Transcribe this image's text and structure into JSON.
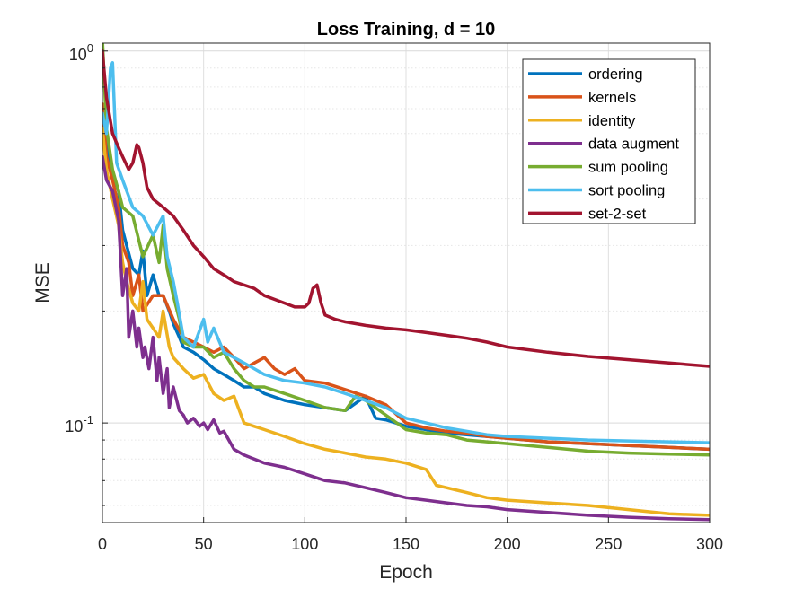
{
  "chart_data": {
    "type": "line",
    "title": "Loss Training, d = 10",
    "xlabel": "Epoch",
    "ylabel": "MSE",
    "xlim": [
      0,
      300
    ],
    "ylim": [
      0.054,
      1.05
    ],
    "yscale": "log",
    "grid": true,
    "legend_position": "top-right",
    "x_ticks": [
      0,
      50,
      100,
      150,
      200,
      250,
      300
    ],
    "x_tick_labels": [
      "0",
      "50",
      "100",
      "150",
      "200",
      "250",
      "300"
    ],
    "y_ticks": [
      {
        "base": "10",
        "exp": "-1",
        "value": 0.1
      },
      {
        "base": "10",
        "exp": "0",
        "value": 1
      }
    ],
    "series": [
      {
        "name": "ordering",
        "color": "#0072BD",
        "x": [
          0,
          2,
          5,
          8,
          10,
          12,
          15,
          18,
          20,
          22,
          25,
          28,
          30,
          33,
          35,
          38,
          40,
          45,
          50,
          55,
          60,
          65,
          70,
          75,
          80,
          90,
          100,
          110,
          120,
          130,
          135,
          140,
          145,
          150,
          160,
          170,
          180,
          190,
          200,
          220,
          240,
          260,
          280,
          300
        ],
        "y": [
          0.7,
          0.55,
          0.47,
          0.42,
          0.33,
          0.3,
          0.26,
          0.25,
          0.29,
          0.22,
          0.25,
          0.22,
          0.22,
          0.2,
          0.185,
          0.17,
          0.16,
          0.155,
          0.148,
          0.14,
          0.135,
          0.13,
          0.125,
          0.125,
          0.12,
          0.115,
          0.112,
          0.11,
          0.108,
          0.118,
          0.103,
          0.102,
          0.1,
          0.098,
          0.096,
          0.094,
          0.093,
          0.092,
          0.091,
          0.089,
          0.088,
          0.087,
          0.086,
          0.085
        ]
      },
      {
        "name": "kernels",
        "color": "#D95319",
        "x": [
          0,
          2,
          5,
          8,
          10,
          13,
          15,
          18,
          20,
          25,
          30,
          35,
          40,
          45,
          50,
          55,
          60,
          65,
          70,
          75,
          80,
          85,
          90,
          95,
          100,
          110,
          120,
          130,
          140,
          150,
          160,
          170,
          180,
          190,
          200,
          220,
          240,
          260,
          280,
          300
        ],
        "y": [
          0.72,
          0.52,
          0.45,
          0.38,
          0.3,
          0.27,
          0.22,
          0.25,
          0.2,
          0.22,
          0.22,
          0.19,
          0.17,
          0.165,
          0.16,
          0.155,
          0.16,
          0.15,
          0.14,
          0.145,
          0.15,
          0.14,
          0.135,
          0.14,
          0.13,
          0.128,
          0.123,
          0.118,
          0.112,
          0.1,
          0.097,
          0.095,
          0.094,
          0.092,
          0.091,
          0.089,
          0.088,
          0.087,
          0.086,
          0.085
        ]
      },
      {
        "name": "identity",
        "color": "#EDB120",
        "x": [
          0,
          2,
          5,
          8,
          10,
          12,
          15,
          18,
          20,
          22,
          25,
          28,
          30,
          33,
          35,
          40,
          45,
          50,
          55,
          60,
          65,
          70,
          75,
          80,
          90,
          100,
          110,
          120,
          130,
          140,
          150,
          160,
          165,
          170,
          180,
          190,
          200,
          220,
          240,
          260,
          280,
          300
        ],
        "y": [
          0.62,
          0.48,
          0.4,
          0.34,
          0.27,
          0.24,
          0.21,
          0.2,
          0.24,
          0.19,
          0.18,
          0.17,
          0.2,
          0.16,
          0.15,
          0.14,
          0.132,
          0.135,
          0.12,
          0.115,
          0.118,
          0.1,
          0.098,
          0.096,
          0.092,
          0.088,
          0.085,
          0.083,
          0.081,
          0.08,
          0.078,
          0.075,
          0.068,
          0.067,
          0.065,
          0.063,
          0.062,
          0.061,
          0.06,
          0.0585,
          0.057,
          0.0565
        ]
      },
      {
        "name": "data augment",
        "color": "#7E2F8E",
        "x": [
          0,
          2,
          5,
          8,
          10,
          12,
          13,
          15,
          17,
          18,
          20,
          21,
          23,
          25,
          27,
          28,
          30,
          32,
          33,
          35,
          38,
          40,
          42,
          45,
          48,
          50,
          52,
          55,
          58,
          60,
          65,
          70,
          75,
          80,
          90,
          100,
          110,
          120,
          130,
          140,
          150,
          160,
          170,
          180,
          190,
          200,
          220,
          240,
          260,
          280,
          300
        ],
        "y": [
          0.52,
          0.45,
          0.42,
          0.35,
          0.22,
          0.26,
          0.17,
          0.2,
          0.16,
          0.18,
          0.15,
          0.16,
          0.14,
          0.17,
          0.13,
          0.15,
          0.12,
          0.14,
          0.11,
          0.125,
          0.108,
          0.105,
          0.1,
          0.103,
          0.098,
          0.1,
          0.096,
          0.102,
          0.094,
          0.095,
          0.085,
          0.082,
          0.08,
          0.078,
          0.076,
          0.073,
          0.07,
          0.069,
          0.067,
          0.065,
          0.063,
          0.062,
          0.061,
          0.06,
          0.0595,
          0.0585,
          0.0575,
          0.0565,
          0.0558,
          0.0553,
          0.055
        ]
      },
      {
        "name": "sum pooling",
        "color": "#77AC30",
        "x": [
          0,
          2,
          5,
          8,
          10,
          15,
          20,
          25,
          28,
          30,
          32,
          35,
          38,
          40,
          45,
          50,
          55,
          60,
          65,
          70,
          75,
          80,
          90,
          100,
          110,
          120,
          125,
          130,
          140,
          150,
          160,
          170,
          180,
          190,
          200,
          220,
          240,
          260,
          280,
          300
        ],
        "y": [
          1.08,
          0.62,
          0.48,
          0.42,
          0.38,
          0.36,
          0.28,
          0.32,
          0.27,
          0.34,
          0.26,
          0.22,
          0.19,
          0.165,
          0.16,
          0.16,
          0.15,
          0.155,
          0.14,
          0.13,
          0.125,
          0.125,
          0.12,
          0.115,
          0.11,
          0.108,
          0.118,
          0.115,
          0.105,
          0.096,
          0.094,
          0.093,
          0.09,
          0.089,
          0.088,
          0.086,
          0.084,
          0.083,
          0.0825,
          0.082
        ]
      },
      {
        "name": "sort pooling",
        "color": "#4DBEEE",
        "x": [
          0,
          2,
          4,
          5,
          7,
          10,
          15,
          20,
          25,
          30,
          32,
          35,
          37,
          40,
          45,
          50,
          52,
          55,
          60,
          65,
          70,
          75,
          80,
          90,
          100,
          110,
          120,
          130,
          140,
          150,
          160,
          170,
          180,
          190,
          200,
          220,
          240,
          260,
          280,
          300
        ],
        "y": [
          0.68,
          0.6,
          0.9,
          0.93,
          0.5,
          0.45,
          0.38,
          0.36,
          0.32,
          0.36,
          0.28,
          0.24,
          0.21,
          0.17,
          0.16,
          0.19,
          0.165,
          0.18,
          0.155,
          0.15,
          0.145,
          0.14,
          0.135,
          0.13,
          0.128,
          0.125,
          0.12,
          0.115,
          0.11,
          0.103,
          0.1,
          0.097,
          0.095,
          0.093,
          0.092,
          0.091,
          0.09,
          0.0895,
          0.089,
          0.0885
        ]
      },
      {
        "name": "set-2-set",
        "color": "#A2142F",
        "x": [
          0,
          2,
          5,
          8,
          10,
          13,
          15,
          17,
          18,
          20,
          22,
          25,
          30,
          35,
          40,
          45,
          50,
          55,
          60,
          65,
          70,
          75,
          80,
          85,
          90,
          95,
          100,
          102,
          104,
          106,
          108,
          110,
          115,
          120,
          130,
          140,
          150,
          160,
          170,
          180,
          190,
          200,
          220,
          240,
          260,
          280,
          300
        ],
        "y": [
          1.0,
          0.75,
          0.6,
          0.55,
          0.52,
          0.48,
          0.5,
          0.56,
          0.55,
          0.5,
          0.43,
          0.4,
          0.38,
          0.36,
          0.33,
          0.3,
          0.28,
          0.26,
          0.25,
          0.24,
          0.235,
          0.23,
          0.22,
          0.215,
          0.21,
          0.205,
          0.205,
          0.21,
          0.23,
          0.235,
          0.21,
          0.195,
          0.19,
          0.187,
          0.183,
          0.18,
          0.178,
          0.175,
          0.172,
          0.169,
          0.165,
          0.16,
          0.155,
          0.151,
          0.148,
          0.145,
          0.142
        ]
      }
    ]
  }
}
